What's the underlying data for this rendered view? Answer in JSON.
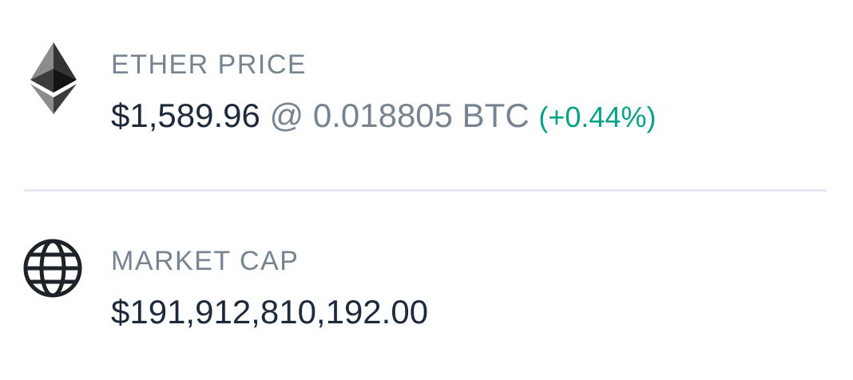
{
  "ether_price": {
    "label": "ETHER PRICE",
    "usd": "$1,589.96",
    "btc": "@ 0.018805 BTC",
    "change": "(+0.44%)",
    "change_color": "#00a186",
    "icon": "ethereum-icon"
  },
  "market_cap": {
    "label": "MARKET CAP",
    "value": "$191,912,810,192.00",
    "icon": "globe-icon"
  },
  "colors": {
    "label": "#77838f",
    "value": "#1e2939",
    "positive": "#00a186",
    "divider": "#e7eaf3"
  }
}
